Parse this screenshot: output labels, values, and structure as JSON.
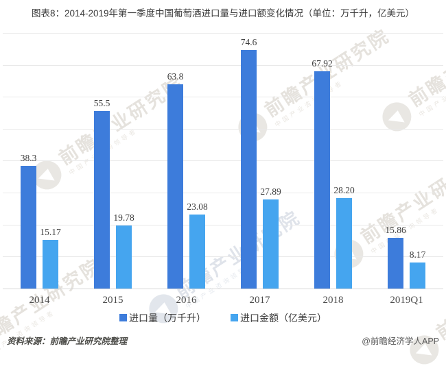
{
  "title": "图表8：2014-2019年第一季度中国葡萄酒进口量与进口额变化情况（单位：万千升，亿美元）",
  "chart_data": {
    "type": "bar",
    "categories": [
      "2014",
      "2015",
      "2016",
      "2017",
      "2018",
      "2019Q1"
    ],
    "series": [
      {
        "name": "进口量（万千升）",
        "color": "#3d7cdb",
        "values": [
          38.3,
          55.5,
          63.8,
          74.6,
          67.92,
          15.86
        ],
        "labels": [
          "38.3",
          "55.5",
          "63.8",
          "74.6",
          "67.92",
          "15.86"
        ]
      },
      {
        "name": "进口金额（亿美元）",
        "color": "#45a5ef",
        "values": [
          15.17,
          19.78,
          23.08,
          27.89,
          28.2,
          8.17
        ],
        "labels": [
          "15.17",
          "19.78",
          "23.08",
          "27.89",
          "28.20",
          "8.17"
        ]
      }
    ],
    "ylim": [
      0,
      80
    ],
    "grid_step": 10,
    "grid": true,
    "legend_position": "bottom"
  },
  "footer": {
    "source": "资料来源：前瞻产业研究院整理",
    "credit": "@前瞻经济学人APP"
  },
  "watermark": {
    "text": "前瞻产业研究院",
    "subtext": "中国产业咨询领导者"
  }
}
